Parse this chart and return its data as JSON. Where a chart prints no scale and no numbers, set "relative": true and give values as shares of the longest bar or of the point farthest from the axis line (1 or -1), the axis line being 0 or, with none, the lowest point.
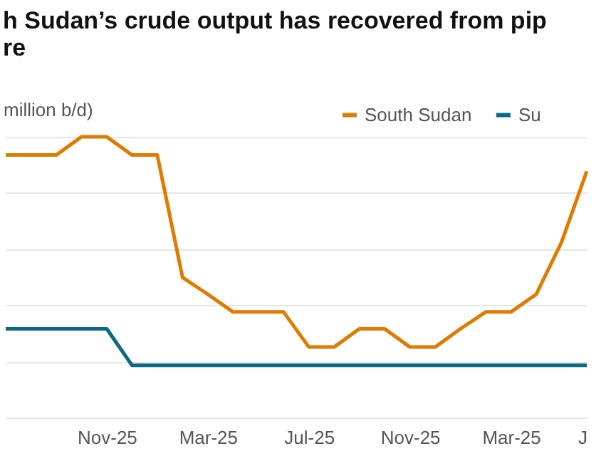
{
  "chart_data": {
    "type": "line",
    "title": [
      "h Sudan’s crude output has recovered from pip",
      "re"
    ],
    "ylabel": "million b/d)",
    "categories": [
      null,
      null,
      null,
      null,
      "Nov-25",
      null,
      null,
      null,
      "Mar-25",
      null,
      null,
      null,
      "Jul-25",
      null,
      null,
      null,
      "Nov-25",
      null,
      null,
      null,
      "Mar-25",
      null,
      null,
      "J"
    ],
    "relative": true,
    "grid": "y",
    "legend": "top right",
    "series": [
      {
        "name": "South Sudan",
        "color": "#e07b00",
        "values": [
          0.935,
          0.935,
          0.935,
          1,
          1,
          0.935,
          0.935,
          0.499,
          0.439,
          0.376,
          0.376,
          0.376,
          0.251,
          0.251,
          0.316,
          0.316,
          0.251,
          0.251,
          0.316,
          0.376,
          0.376,
          0.439,
          0.624,
          0.877
        ]
      },
      {
        "name": "Su",
        "color": "#0a6a86",
        "values": [
          0.316,
          0.316,
          0.316,
          0.316,
          0.316,
          0.186,
          0.186,
          0.186,
          0.186,
          0.186,
          0.186,
          0.186,
          0.186,
          0.186,
          0.186,
          0.186,
          0.186,
          0.186,
          0.186,
          0.186,
          0.186,
          0.186,
          0.186,
          0.186
        ]
      }
    ]
  }
}
